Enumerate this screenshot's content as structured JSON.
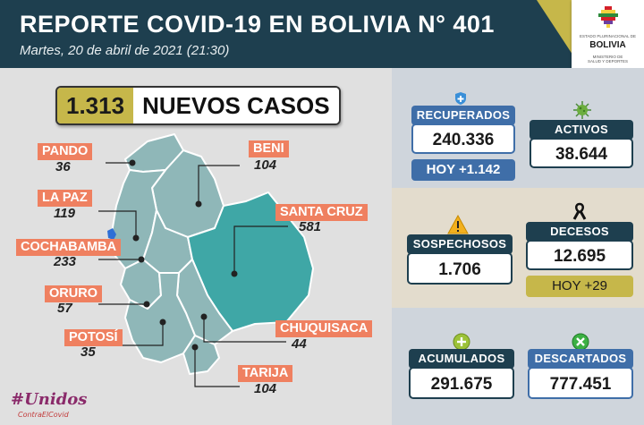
{
  "header": {
    "title": "REPORTE COVID-19 EN BOLIVIA N° 401",
    "subtitle": "Martes, 20 de abril de 2021 (21:30)"
  },
  "logo": {
    "top_text": "ESTADO PLURINACIONAL DE",
    "country": "BOLIVIA",
    "ministry_line1": "MINISTERIO DE",
    "ministry_line2": "SALUD Y DEPORTES"
  },
  "new_cases": {
    "value": "1.313",
    "label": "NUEVOS CASOS"
  },
  "departments": [
    {
      "name": "PANDO",
      "cases": "36"
    },
    {
      "name": "BENI",
      "cases": "104"
    },
    {
      "name": "LA PAZ",
      "cases": "119"
    },
    {
      "name": "SANTA CRUZ",
      "cases": "581"
    },
    {
      "name": "COCHABAMBA",
      "cases": "233"
    },
    {
      "name": "ORURO",
      "cases": "57"
    },
    {
      "name": "CHUQUISACA",
      "cases": "44"
    },
    {
      "name": "POTOSÍ",
      "cases": "35"
    },
    {
      "name": "TARIJA",
      "cases": "104"
    }
  ],
  "stats": {
    "recuperados": {
      "label": "RECUPERADOS",
      "value": "240.336",
      "today": "HOY +1.142"
    },
    "activos": {
      "label": "ACTIVOS",
      "value": "38.644"
    },
    "sospechosos": {
      "label": "SOSPECHOSOS",
      "value": "1.706"
    },
    "decesos": {
      "label": "DECESOS",
      "value": "12.695",
      "today": "HOY +29"
    },
    "acumulados": {
      "label": "ACUMULADOS",
      "value": "291.675"
    },
    "descartados": {
      "label": "DESCARTADOS",
      "value": "777.451"
    }
  },
  "campaign": {
    "line1": "#Unidos",
    "line2": "ContraElCovid"
  },
  "colors": {
    "header": "#1e3f4f",
    "accent_gold": "#c6b74a",
    "dept_label": "#ef8060",
    "map_region": "#8fb7b8",
    "map_highlight": "#3fa7a6",
    "blue_card": "#3f6ea8"
  }
}
